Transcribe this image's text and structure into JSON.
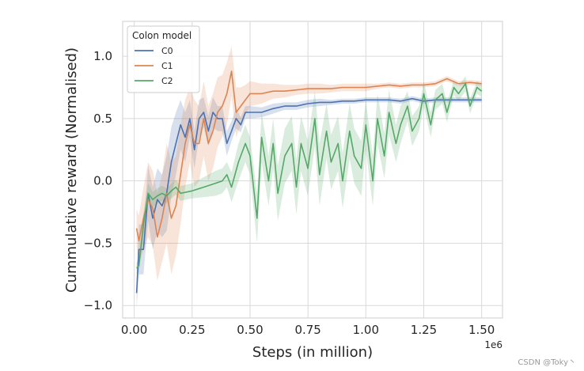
{
  "chart_data": {
    "type": "line",
    "title": "",
    "xlabel": "Steps (in million)",
    "ylabel": "Cummulative reward (Normalised)",
    "x_offset_label": "1e6",
    "xlim": [
      -0.05,
      1.59
    ],
    "ylim": [
      -1.1,
      1.28
    ],
    "x_ticks": [
      0.0,
      0.25,
      0.5,
      0.75,
      1.0,
      1.25,
      1.5
    ],
    "x_tick_labels": [
      "0.00",
      "0.25",
      "0.50",
      "0.75",
      "1.00",
      "1.25",
      "1.50"
    ],
    "y_ticks": [
      -1.0,
      -0.5,
      0.0,
      0.5,
      1.0
    ],
    "y_tick_labels": [
      "−1.0",
      "−0.5",
      "0.0",
      "0.5",
      "1.0"
    ],
    "grid": true,
    "legend": {
      "title": "Colon model",
      "position": "top-left"
    },
    "series": [
      {
        "name": "C0",
        "color": "#4c72b0",
        "x": [
          0.01,
          0.02,
          0.04,
          0.06,
          0.08,
          0.1,
          0.12,
          0.14,
          0.16,
          0.18,
          0.2,
          0.22,
          0.24,
          0.26,
          0.28,
          0.3,
          0.32,
          0.34,
          0.36,
          0.38,
          0.4,
          0.42,
          0.44,
          0.46,
          0.48,
          0.5,
          0.55,
          0.6,
          0.65,
          0.7,
          0.75,
          0.8,
          0.85,
          0.9,
          0.95,
          1.0,
          1.05,
          1.1,
          1.15,
          1.2,
          1.25,
          1.3,
          1.35,
          1.4,
          1.45,
          1.5
        ],
        "y": [
          -0.9,
          -0.55,
          -0.55,
          -0.1,
          -0.3,
          -0.15,
          -0.2,
          -0.1,
          0.15,
          0.3,
          0.45,
          0.35,
          0.5,
          0.25,
          0.5,
          0.55,
          0.4,
          0.55,
          0.5,
          0.5,
          0.3,
          0.4,
          0.5,
          0.45,
          0.55,
          0.55,
          0.55,
          0.58,
          0.6,
          0.6,
          0.62,
          0.63,
          0.63,
          0.64,
          0.64,
          0.65,
          0.65,
          0.65,
          0.64,
          0.66,
          0.64,
          0.65,
          0.65,
          0.65,
          0.65,
          0.65
        ],
        "band": [
          0.12,
          0.2,
          0.2,
          0.22,
          0.25,
          0.25,
          0.25,
          0.3,
          0.28,
          0.25,
          0.2,
          0.2,
          0.15,
          0.15,
          0.15,
          0.12,
          0.12,
          0.12,
          0.1,
          0.1,
          0.1,
          0.08,
          0.08,
          0.06,
          0.05,
          0.05,
          0.04,
          0.04,
          0.03,
          0.03,
          0.03,
          0.03,
          0.02,
          0.02,
          0.02,
          0.02,
          0.02,
          0.02,
          0.02,
          0.02,
          0.02,
          0.02,
          0.02,
          0.02,
          0.02,
          0.02
        ]
      },
      {
        "name": "C1",
        "color": "#dd8452",
        "x": [
          0.01,
          0.02,
          0.04,
          0.06,
          0.08,
          0.1,
          0.12,
          0.14,
          0.16,
          0.18,
          0.2,
          0.22,
          0.24,
          0.26,
          0.28,
          0.3,
          0.32,
          0.34,
          0.36,
          0.38,
          0.4,
          0.42,
          0.44,
          0.46,
          0.48,
          0.5,
          0.55,
          0.6,
          0.65,
          0.7,
          0.75,
          0.8,
          0.85,
          0.9,
          0.95,
          1.0,
          1.05,
          1.1,
          1.15,
          1.2,
          1.25,
          1.3,
          1.35,
          1.4,
          1.45,
          1.5
        ],
        "y": [
          -0.38,
          -0.48,
          -0.3,
          -0.15,
          -0.22,
          -0.45,
          -0.3,
          -0.1,
          -0.3,
          -0.2,
          0.05,
          0.3,
          0.45,
          0.3,
          0.3,
          0.5,
          0.3,
          0.4,
          0.55,
          0.6,
          0.7,
          0.88,
          0.55,
          0.6,
          0.65,
          0.7,
          0.7,
          0.72,
          0.72,
          0.73,
          0.74,
          0.74,
          0.74,
          0.75,
          0.75,
          0.75,
          0.76,
          0.77,
          0.76,
          0.77,
          0.77,
          0.78,
          0.82,
          0.78,
          0.79,
          0.78
        ],
        "band": [
          0.15,
          0.2,
          0.25,
          0.3,
          0.3,
          0.35,
          0.35,
          0.4,
          0.45,
          0.4,
          0.4,
          0.35,
          0.3,
          0.35,
          0.3,
          0.3,
          0.3,
          0.3,
          0.28,
          0.25,
          0.25,
          0.2,
          0.2,
          0.15,
          0.12,
          0.1,
          0.08,
          0.06,
          0.05,
          0.04,
          0.04,
          0.04,
          0.03,
          0.03,
          0.03,
          0.03,
          0.02,
          0.02,
          0.02,
          0.02,
          0.02,
          0.02,
          0.02,
          0.02,
          0.02,
          0.02
        ]
      },
      {
        "name": "C2",
        "color": "#55a868",
        "x": [
          0.01,
          0.02,
          0.04,
          0.06,
          0.08,
          0.1,
          0.12,
          0.14,
          0.16,
          0.18,
          0.2,
          0.25,
          0.3,
          0.35,
          0.38,
          0.4,
          0.42,
          0.45,
          0.48,
          0.5,
          0.53,
          0.55,
          0.58,
          0.6,
          0.62,
          0.65,
          0.68,
          0.7,
          0.72,
          0.75,
          0.78,
          0.8,
          0.83,
          0.85,
          0.88,
          0.9,
          0.93,
          0.95,
          0.98,
          1.0,
          1.03,
          1.05,
          1.08,
          1.1,
          1.13,
          1.15,
          1.18,
          1.2,
          1.23,
          1.25,
          1.28,
          1.3,
          1.33,
          1.35,
          1.38,
          1.4,
          1.43,
          1.45,
          1.48,
          1.5
        ],
        "y": [
          -0.7,
          -0.68,
          -0.35,
          -0.1,
          -0.15,
          -0.12,
          -0.1,
          -0.12,
          -0.08,
          -0.05,
          -0.1,
          -0.08,
          -0.05,
          -0.02,
          0.0,
          0.05,
          -0.05,
          0.15,
          0.3,
          0.2,
          -0.3,
          0.35,
          0.0,
          0.3,
          -0.1,
          0.2,
          0.3,
          -0.05,
          0.3,
          0.1,
          0.5,
          0.05,
          0.4,
          0.15,
          0.3,
          0.0,
          0.4,
          0.2,
          0.1,
          0.45,
          0.0,
          0.5,
          0.2,
          0.55,
          0.3,
          0.45,
          0.6,
          0.4,
          0.5,
          0.7,
          0.45,
          0.65,
          0.7,
          0.55,
          0.75,
          0.7,
          0.78,
          0.6,
          0.75,
          0.72
        ],
        "band": [
          0.05,
          0.05,
          0.1,
          0.08,
          0.06,
          0.06,
          0.06,
          0.06,
          0.06,
          0.06,
          0.06,
          0.06,
          0.08,
          0.1,
          0.1,
          0.1,
          0.12,
          0.15,
          0.15,
          0.15,
          0.2,
          0.2,
          0.2,
          0.2,
          0.22,
          0.22,
          0.22,
          0.22,
          0.22,
          0.22,
          0.22,
          0.25,
          0.22,
          0.22,
          0.22,
          0.22,
          0.22,
          0.22,
          0.22,
          0.2,
          0.2,
          0.2,
          0.18,
          0.18,
          0.15,
          0.15,
          0.12,
          0.12,
          0.1,
          0.1,
          0.1,
          0.08,
          0.08,
          0.08,
          0.06,
          0.06,
          0.06,
          0.06,
          0.05,
          0.05
        ]
      }
    ]
  },
  "watermark": "CSDN @Toky丶"
}
